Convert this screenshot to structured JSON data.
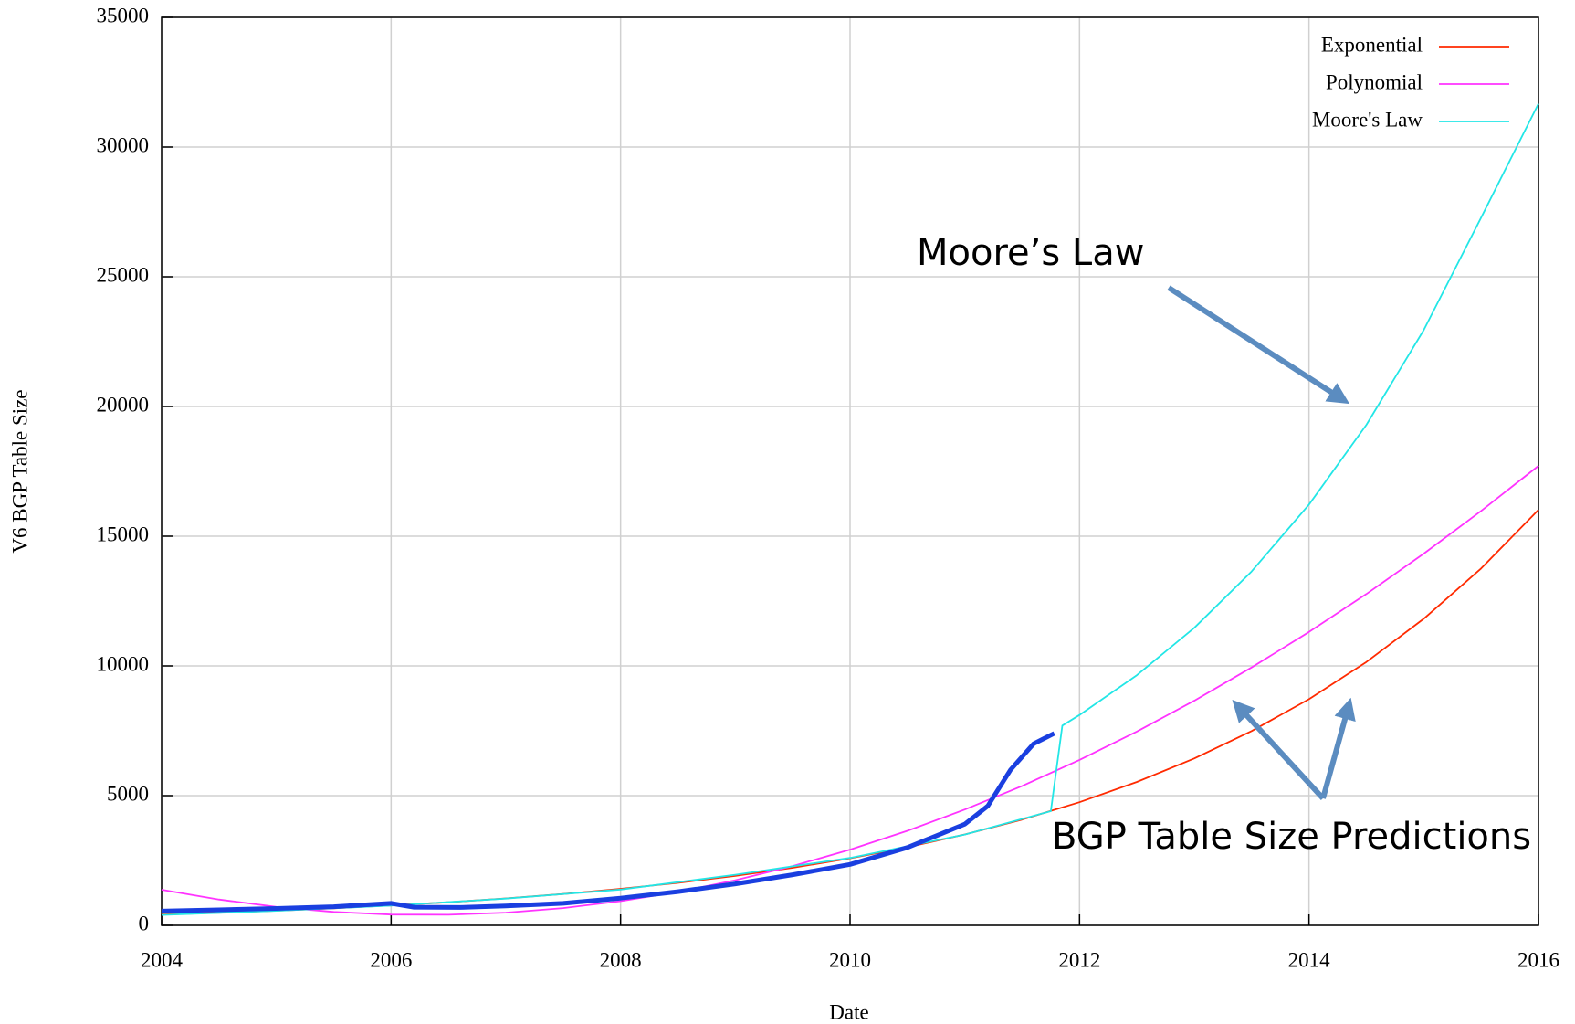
{
  "chart_data": {
    "type": "line",
    "x_label": "Date",
    "y_label": "V6 BGP Table Size",
    "xlim": [
      2004,
      2016
    ],
    "xticks": [
      2004,
      2006,
      2008,
      2010,
      2012,
      2014,
      2016
    ],
    "ylim": [
      0,
      35000
    ],
    "yticks": [
      0,
      5000,
      10000,
      15000,
      20000,
      25000,
      30000,
      35000
    ],
    "grid": true,
    "legend": "top-right",
    "series": [
      {
        "name": "Exponential",
        "color": "#ff2a00",
        "x": [
          2004,
          2004.5,
          2005,
          2005.5,
          2006,
          2006.5,
          2007,
          2007.5,
          2008,
          2008.5,
          2009,
          2009.5,
          2010,
          2010.5,
          2011,
          2011.5,
          2012,
          2012.5,
          2013,
          2013.5,
          2014,
          2014.5,
          2015,
          2015.5,
          2016
        ],
        "values": [
          417,
          486,
          565,
          658,
          766,
          892,
          1038,
          1209,
          1407,
          1638,
          1907,
          2220,
          2585,
          3009,
          3503,
          4078,
          4748,
          5527,
          6434,
          7490,
          8720,
          10151,
          11818,
          13758,
          16016
        ]
      },
      {
        "name": "Polynomial",
        "color": "#ff33ff",
        "x": [
          2004,
          2004.5,
          2005,
          2005.5,
          2006,
          2006.5,
          2007,
          2007.5,
          2008,
          2008.5,
          2009,
          2009.5,
          2010,
          2010.5,
          2011,
          2011.5,
          2012,
          2012.5,
          2013,
          2013.5,
          2014,
          2014.5,
          2015,
          2015.5,
          2016
        ],
        "values": [
          1373,
          996,
          711,
          518,
          417,
          407,
          490,
          665,
          932,
          1291,
          1741,
          2284,
          2919,
          3646,
          4465,
          5375,
          6378,
          7473,
          8660,
          9939,
          11309,
          12772,
          14327,
          15974,
          17713
        ]
      },
      {
        "name": "Moore's Law",
        "color": "#22e6e6",
        "x": [
          2004,
          2005,
          2006,
          2007,
          2008,
          2009,
          2010,
          2011,
          2011.75,
          2011.85,
          2012,
          2012.5,
          2013,
          2013.5,
          2014,
          2014.5,
          2015,
          2015.5,
          2016
        ],
        "values": [
          400,
          560,
          760,
          1030,
          1380,
          1950,
          2600,
          3500,
          4400,
          7700,
          8110,
          9646,
          11470,
          13642,
          16223,
          19292,
          22942,
          27282,
          31673
        ]
      },
      {
        "color": "#1a3fe0",
        "x": [
          2004,
          2004.5,
          2005,
          2005.5,
          2006,
          2006.2,
          2006.6,
          2007,
          2007.5,
          2008,
          2008.5,
          2009,
          2009.5,
          2010,
          2010.5,
          2011,
          2011.2,
          2011.4,
          2011.6,
          2011.78
        ],
        "values": [
          550,
          600,
          650,
          720,
          850,
          700,
          690,
          750,
          850,
          1050,
          1300,
          1600,
          1950,
          2350,
          3000,
          3900,
          4600,
          6000,
          7000,
          7400
        ]
      }
    ],
    "annotations": [
      "Moore’s Law",
      "BGP Table Size Predictions"
    ]
  }
}
